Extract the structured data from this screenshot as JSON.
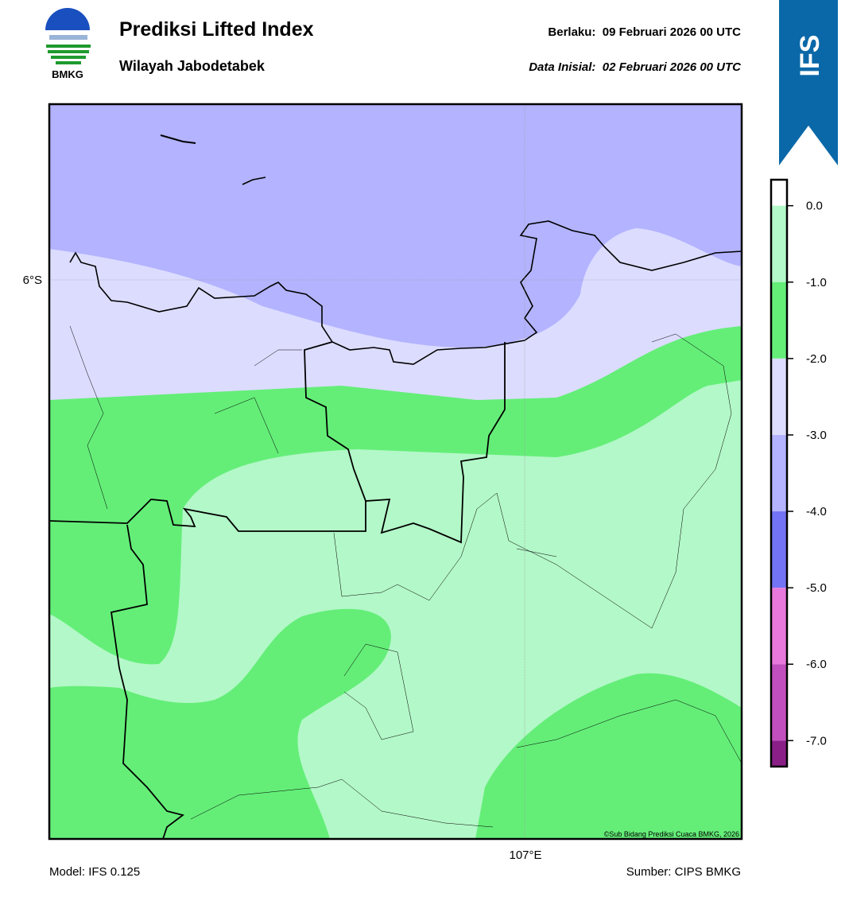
{
  "header": {
    "logo_text": "BMKG",
    "title": "Prediksi Lifted Index",
    "subtitle": "Wilayah Jabodetabek",
    "valid": "Berlaku:  09 Februari 2026 00 UTC",
    "init": "Data Inisial:  02 Februari 2026 00 UTC",
    "badge": "IFS"
  },
  "map": {
    "lat_label": "6°S",
    "lon_label": "107°E",
    "credit": "©Sub Bidang Prediksi Cuaca BMKG, 2026"
  },
  "colorbar": {
    "clim": [
      -7.34,
      0.34
    ],
    "bounds": [
      0,
      -1,
      -2,
      -3,
      -4,
      -5,
      -6,
      -7
    ],
    "colors": [
      "#ffffff",
      "#b3f8c8",
      "#64ee78",
      "#dcdcff",
      "#b3b3ff",
      "#7373f5",
      "#e878dc",
      "#c24fbe",
      "#8a1f88"
    ],
    "ticks": [
      {
        "value": 0,
        "label": "0.0"
      },
      {
        "value": -1,
        "label": "-1.0"
      },
      {
        "value": -2,
        "label": "-2.0"
      },
      {
        "value": -3,
        "label": "-3.0"
      },
      {
        "value": -4,
        "label": "-4.0"
      },
      {
        "value": -5,
        "label": "-5.0"
      },
      {
        "value": -6,
        "label": "-6.0"
      },
      {
        "value": -7,
        "label": "-7.0"
      }
    ]
  },
  "footer": {
    "model": "Model: IFS 0.125",
    "source": "Sumber: CIPS BMKG"
  }
}
